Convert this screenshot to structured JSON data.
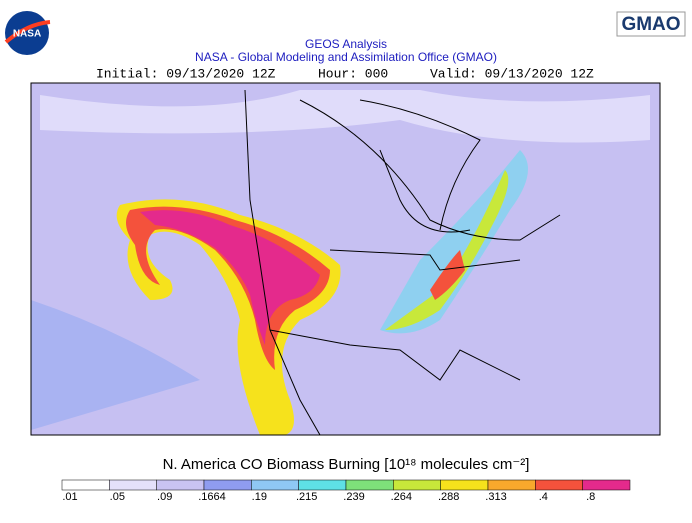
{
  "header": {
    "nasa_logo": "NASA",
    "gmao_logo": "GMAO",
    "title": "GEOS Analysis",
    "subtitle": "NASA - Global Modeling and Assimilation Office (GMAO)",
    "initial": "Initial: 09/13/2020 12Z",
    "hour": "Hour: 000",
    "valid": "Valid: 09/13/2020 12Z"
  },
  "colorbar": {
    "title": "N. America CO Biomass Burning [10¹⁸ molecules cm⁻²]",
    "labels": [
      ".01",
      ".05",
      ".09",
      ".1664",
      ".19",
      ".215",
      ".239",
      ".264",
      ".288",
      ".313",
      ".4",
      ".8"
    ],
    "colors": [
      "#ffffff",
      "#e4e0fa",
      "#c9c3f2",
      "#8f9cf0",
      "#8fc8f4",
      "#5ee0e6",
      "#7ee07a",
      "#c8e83a",
      "#f6e21c",
      "#f8a82c",
      "#f4523c",
      "#e42a8c"
    ]
  }
}
